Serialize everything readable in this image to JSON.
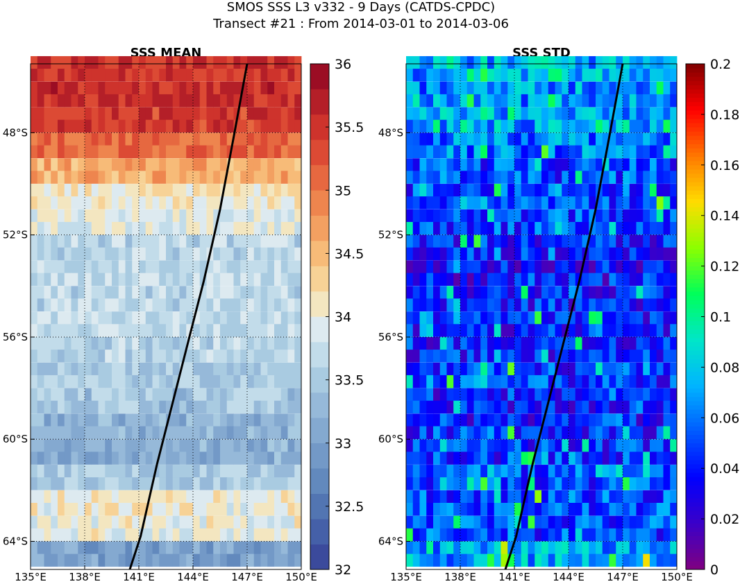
{
  "figure": {
    "title_line1": "SMOS SSS L3 v332 - 9 Days (CATDS-CPDC)",
    "title_line2": "Transect #21 : From 2014-03-01 to 2014-03-06"
  },
  "chart_data": [
    {
      "type": "heatmap",
      "title": "SSS MEAN",
      "x_ticks": [
        "135°E",
        "138°E",
        "141°E",
        "144°E",
        "147°E",
        "150°E"
      ],
      "x_tick_values": [
        135,
        138,
        141,
        144,
        147,
        150
      ],
      "y_ticks": [
        "48°S",
        "52°S",
        "56°S",
        "60°S",
        "64°S"
      ],
      "y_tick_values": [
        -48,
        -52,
        -56,
        -60,
        -64
      ],
      "xlim": [
        135,
        150
      ],
      "ylim": [
        -65.1,
        -45.3
      ],
      "grid": true,
      "colorbar": {
        "ticks": [
          "36",
          "35.5",
          "35",
          "34.5",
          "34",
          "33.5",
          "33",
          "32.5",
          "32"
        ],
        "tick_values": [
          36,
          35.5,
          35,
          34.5,
          34,
          33.5,
          33,
          32.5,
          32
        ],
        "range": [
          32,
          36
        ],
        "levels": 20,
        "colors": [
          "#3b4a9c",
          "#4560a8",
          "#5275b2",
          "#6289bd",
          "#7399c7",
          "#84a9d0",
          "#96b9d9",
          "#a9cbe1",
          "#c2dcea",
          "#ddeaf0",
          "#f3e6c0",
          "#f7d296",
          "#f7bb78",
          "#f3a061",
          "#ee854e",
          "#e66840",
          "#dc4a34",
          "#ce332c",
          "#b41f28",
          "#9b0d24"
        ]
      },
      "rows": [
        {
          "lat": -45.5,
          "value": 35.5
        },
        {
          "lat": -46.5,
          "value": 35.55
        },
        {
          "lat": -47.5,
          "value": 35.45
        },
        {
          "lat": -48.5,
          "value": 35.1
        },
        {
          "lat": -49.5,
          "value": 34.6
        },
        {
          "lat": -50.5,
          "value": 34.1
        },
        {
          "lat": -51.5,
          "value": 33.9
        },
        {
          "lat": -52.5,
          "value": 33.6
        },
        {
          "lat": -53.5,
          "value": 33.7
        },
        {
          "lat": -54.5,
          "value": 33.65
        },
        {
          "lat": -55.5,
          "value": 33.7
        },
        {
          "lat": -56.5,
          "value": 33.6
        },
        {
          "lat": -57.5,
          "value": 33.5
        },
        {
          "lat": -58.5,
          "value": 33.45
        },
        {
          "lat": -59.5,
          "value": 33.2
        },
        {
          "lat": -60.5,
          "value": 33.15
        },
        {
          "lat": -61.5,
          "value": 33.5
        },
        {
          "lat": -62.5,
          "value": 34.05
        },
        {
          "lat": -63.5,
          "value": 33.95
        },
        {
          "lat": -64.5,
          "value": 33.0
        }
      ],
      "transect": {
        "lon": [
          147.0,
          146.3,
          145.5,
          144.6,
          143.8,
          142.9,
          142.0,
          141.1,
          140.5
        ],
        "lat": [
          -45.3,
          -48.0,
          -51.0,
          -53.8,
          -56.0,
          -58.5,
          -61.0,
          -63.8,
          -65.1
        ]
      }
    },
    {
      "type": "heatmap",
      "title": "SSS STD",
      "x_ticks": [
        "135°E",
        "138°E",
        "141°E",
        "144°E",
        "147°E",
        "150°E"
      ],
      "x_tick_values": [
        135,
        138,
        141,
        144,
        147,
        150
      ],
      "y_ticks": [
        "48°S",
        "52°S",
        "56°S",
        "60°S",
        "64°S"
      ],
      "y_tick_values": [
        -48,
        -52,
        -56,
        -60,
        -64
      ],
      "xlim": [
        135,
        150
      ],
      "ylim": [
        -65.1,
        -45.3
      ],
      "grid": true,
      "colorbar": {
        "ticks": [
          "0.2",
          "0.18",
          "0.16",
          "0.14",
          "0.12",
          "0.1",
          "0.08",
          "0.06",
          "0.04",
          "0.02",
          "0"
        ],
        "tick_values": [
          0.2,
          0.18,
          0.16,
          0.14,
          0.12,
          0.1,
          0.08,
          0.06,
          0.04,
          0.02,
          0
        ],
        "range": [
          0,
          0.2
        ],
        "colors": [
          "#800080",
          "#3b00c8",
          "#0000ff",
          "#005aff",
          "#00b4ff",
          "#00e6c8",
          "#00ff5a",
          "#8cff00",
          "#ffdc00",
          "#ff7800",
          "#ff0000",
          "#800000"
        ]
      },
      "rows": [
        {
          "lat": -45.5,
          "value": 0.07
        },
        {
          "lat": -46.5,
          "value": 0.065
        },
        {
          "lat": -47.5,
          "value": 0.07
        },
        {
          "lat": -48.5,
          "value": 0.06
        },
        {
          "lat": -49.5,
          "value": 0.05
        },
        {
          "lat": -50.5,
          "value": 0.05
        },
        {
          "lat": -51.5,
          "value": 0.05
        },
        {
          "lat": -52.5,
          "value": 0.04
        },
        {
          "lat": -53.5,
          "value": 0.035
        },
        {
          "lat": -54.5,
          "value": 0.04
        },
        {
          "lat": -55.5,
          "value": 0.04
        },
        {
          "lat": -56.5,
          "value": 0.04
        },
        {
          "lat": -57.5,
          "value": 0.045
        },
        {
          "lat": -58.5,
          "value": 0.04
        },
        {
          "lat": -59.5,
          "value": 0.04
        },
        {
          "lat": -60.5,
          "value": 0.045
        },
        {
          "lat": -61.5,
          "value": 0.05
        },
        {
          "lat": -62.5,
          "value": 0.05
        },
        {
          "lat": -63.5,
          "value": 0.05
        },
        {
          "lat": -64.5,
          "value": 0.07
        }
      ],
      "transect": {
        "lon": [
          147.0,
          146.3,
          145.5,
          144.6,
          143.8,
          142.9,
          142.0,
          141.1,
          140.5
        ],
        "lat": [
          -45.3,
          -48.0,
          -51.0,
          -53.8,
          -56.0,
          -58.5,
          -61.0,
          -63.8,
          -65.1
        ]
      }
    }
  ]
}
